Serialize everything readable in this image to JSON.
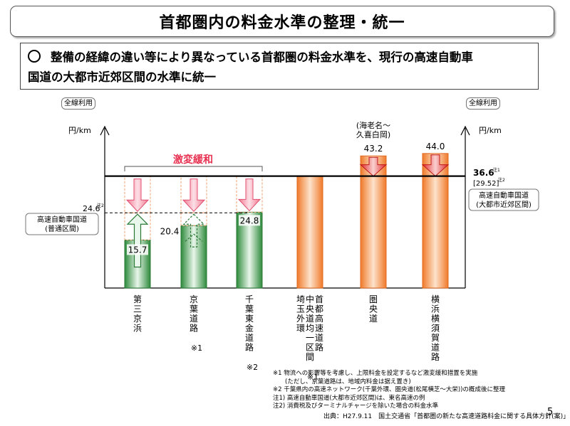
{
  "title": "首都圏内の料金水準の整理・統一",
  "summary": {
    "line1": "整備の経緯の違い等により異なっている首都圏の料金水準を、現行の高速自動車",
    "line2": "国道の大都市近郊区間の水準に統一"
  },
  "left_unit": {
    "box": "全線利用",
    "unit": "円/km"
  },
  "right_unit": {
    "box": "全線利用",
    "unit": "円/km"
  },
  "relaxation_label": "激変緩和",
  "ebina_note": {
    "line1": "(海老名～",
    "line2": "久喜白岡)"
  },
  "right_ref": {
    "value": "36.6",
    "note": "注1",
    "sub_value": "[29.52]",
    "sub_note": "注2",
    "label_line1": "高速自動車国道",
    "label_line2": "(大都市近郊区間)"
  },
  "left_ref": {
    "value": "24.6",
    "note": "注2",
    "label_line1": "高速自動車国道",
    "label_line2": "(普通区間)"
  },
  "chart_data": {
    "type": "bar",
    "ylabel": "円/km",
    "reference_lines": [
      {
        "value": 36.6,
        "style": "solid",
        "label": "高速自動車国道(大都市近郊区間)"
      },
      {
        "value": 24.6,
        "style": "dashed",
        "label": "高速自動車国道(普通区間)"
      }
    ],
    "categories": [
      {
        "name": "第三京浜",
        "value": 15.7,
        "value_label": "15.7",
        "color": "green",
        "arrow": "up-solid",
        "relief_arrow": true,
        "footnote": ""
      },
      {
        "name": "京葉道路",
        "value": 20.4,
        "value_label": "20.4",
        "color": "green",
        "arrow": "up-dashed",
        "relief_arrow": true,
        "footnote": "※1"
      },
      {
        "name": "千葉東金道路",
        "value": 24.8,
        "value_label": "24.8",
        "color": "green",
        "arrow": "none",
        "relief_arrow": true,
        "footnote": "※2"
      },
      {
        "name": "首都高速道路",
        "name2": "中央道均一区間",
        "name3": "埼玉外環",
        "value": 36.6,
        "value_label": "",
        "color": "orange",
        "arrow": "none",
        "relief_arrow": false,
        "footnote": "※1"
      },
      {
        "name": "圏央道",
        "value": 43.2,
        "value_label": "43.2",
        "color": "orange",
        "arrow": "down",
        "relief_arrow": false,
        "footnote": ""
      },
      {
        "name": "横浜横須賀道路",
        "value": 44.0,
        "value_label": "44.0",
        "color": "orange",
        "arrow": "down",
        "relief_arrow": false,
        "footnote": ""
      }
    ]
  },
  "notes": [
    "※1 物流への影響等を考慮し、上限料金を設定するなど激変緩和措置を実施",
    "　　(ただし、京葉道路は、地域内料金は据え置き)",
    "※2 千葉県内の高速ネットワーク(千葉外環、圏央道(松尾横芝～大栄))の概成後に整理",
    "注1) 高速自動車国道(大都市近郊区間)は、東名高速の例",
    "注2) 消費税及びターミナルチャージを除いた場合の料金水準"
  ],
  "source": "出典：H27.9.11　国土交通省「首都圏の新たな高速道路料金に関する具体方針(案)」",
  "page_number": "5",
  "colors": {
    "green": "#3a9a4a",
    "orange": "#f28a3a",
    "pink_arrow": "#f08aa0",
    "red_arrow": "#e03030",
    "relief_text": "#e83050"
  }
}
